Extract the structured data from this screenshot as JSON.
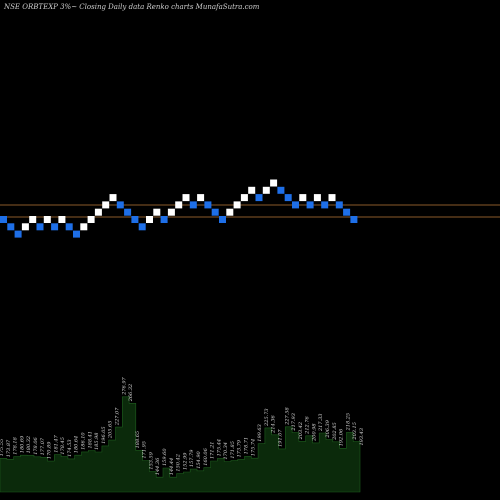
{
  "chart_data": {
    "type": "renko",
    "title": "NSE ORBTEXP 3%~  Closing Daily data  Renko  charts MunafaSutra.com",
    "colors": {
      "up_brick": "#ffffff",
      "down_brick": "#1e6fe8",
      "reference_line": "#8a5a2a",
      "volume_fill": "#0b2a0b",
      "background": "#000000"
    },
    "reference_lines": [
      {
        "level": "upper"
      },
      {
        "level": "lower"
      }
    ],
    "bricks": [
      {
        "dir": "down",
        "level": 0
      },
      {
        "dir": "down",
        "level": -1
      },
      {
        "dir": "down",
        "level": -2
      },
      {
        "dir": "up",
        "level": -1
      },
      {
        "dir": "up",
        "level": 0
      },
      {
        "dir": "down",
        "level": -1
      },
      {
        "dir": "up",
        "level": 0
      },
      {
        "dir": "down",
        "level": -1
      },
      {
        "dir": "up",
        "level": 0
      },
      {
        "dir": "down",
        "level": -1
      },
      {
        "dir": "down",
        "level": -2
      },
      {
        "dir": "up",
        "level": -1
      },
      {
        "dir": "up",
        "level": 0
      },
      {
        "dir": "up",
        "level": 1
      },
      {
        "dir": "up",
        "level": 2
      },
      {
        "dir": "up",
        "level": 3
      },
      {
        "dir": "down",
        "level": 2
      },
      {
        "dir": "down",
        "level": 1
      },
      {
        "dir": "down",
        "level": 0
      },
      {
        "dir": "down",
        "level": -1
      },
      {
        "dir": "up",
        "level": 0
      },
      {
        "dir": "up",
        "level": 1
      },
      {
        "dir": "down",
        "level": 0
      },
      {
        "dir": "up",
        "level": 1
      },
      {
        "dir": "up",
        "level": 2
      },
      {
        "dir": "up",
        "level": 3
      },
      {
        "dir": "down",
        "level": 2
      },
      {
        "dir": "up",
        "level": 3
      },
      {
        "dir": "down",
        "level": 2
      },
      {
        "dir": "down",
        "level": 1
      },
      {
        "dir": "down",
        "level": 0
      },
      {
        "dir": "up",
        "level": 1
      },
      {
        "dir": "up",
        "level": 2
      },
      {
        "dir": "up",
        "level": 3
      },
      {
        "dir": "up",
        "level": 4
      },
      {
        "dir": "down",
        "level": 3
      },
      {
        "dir": "up",
        "level": 4
      },
      {
        "dir": "up",
        "level": 5
      },
      {
        "dir": "down",
        "level": 4
      },
      {
        "dir": "down",
        "level": 3
      },
      {
        "dir": "down",
        "level": 2
      },
      {
        "dir": "up",
        "level": 3
      },
      {
        "dir": "down",
        "level": 2
      },
      {
        "dir": "up",
        "level": 3
      },
      {
        "dir": "down",
        "level": 2
      },
      {
        "dir": "up",
        "level": 3
      },
      {
        "dir": "down",
        "level": 2
      },
      {
        "dir": "down",
        "level": 1
      },
      {
        "dir": "down",
        "level": 0
      }
    ],
    "volume_labels": [
      "175.55",
      "173.87",
      "178.18",
      "180.69",
      "180.32",
      "178.06",
      "177.07",
      "170.89",
      "181.47",
      "178.45",
      "174.53",
      "180.64",
      "186.10",
      "188.41",
      "185.98",
      "196.05",
      "205.65",
      "227.07",
      "276.97",
      "266.32",
      "188.65",
      "171.95",
      "153.59",
      "144.36",
      "159.60",
      "144.44",
      "150.42",
      "152.99",
      "157.79",
      "154.90",
      "160.06",
      "171.21",
      "175.44",
      "170.34",
      "171.85",
      "173.79",
      "178.71",
      "175.74",
      "199.63",
      "225.73",
      "214.36",
      "191.07",
      "227.58",
      "217.93",
      "203.42",
      "212.76",
      "200.98",
      "217.33",
      "206.39",
      "202.85",
      "192.06",
      "218.25",
      "203.15",
      "193.43"
    ],
    "volume_values": [
      175.55,
      173.87,
      178.18,
      180.69,
      180.32,
      178.06,
      177.07,
      170.89,
      181.47,
      178.45,
      174.53,
      180.64,
      186.1,
      188.41,
      185.98,
      196.05,
      205.65,
      227.07,
      276.97,
      266.32,
      188.65,
      171.95,
      153.59,
      144.36,
      159.6,
      144.44,
      150.42,
      152.99,
      157.79,
      154.9,
      160.06,
      171.21,
      175.44,
      170.34,
      171.85,
      173.79,
      178.71,
      175.74,
      199.63,
      225.73,
      214.36,
      191.07,
      227.58,
      217.93,
      203.42,
      212.76,
      200.98,
      217.33,
      206.39,
      202.85,
      192.06,
      218.25,
      203.15,
      193.43
    ]
  }
}
